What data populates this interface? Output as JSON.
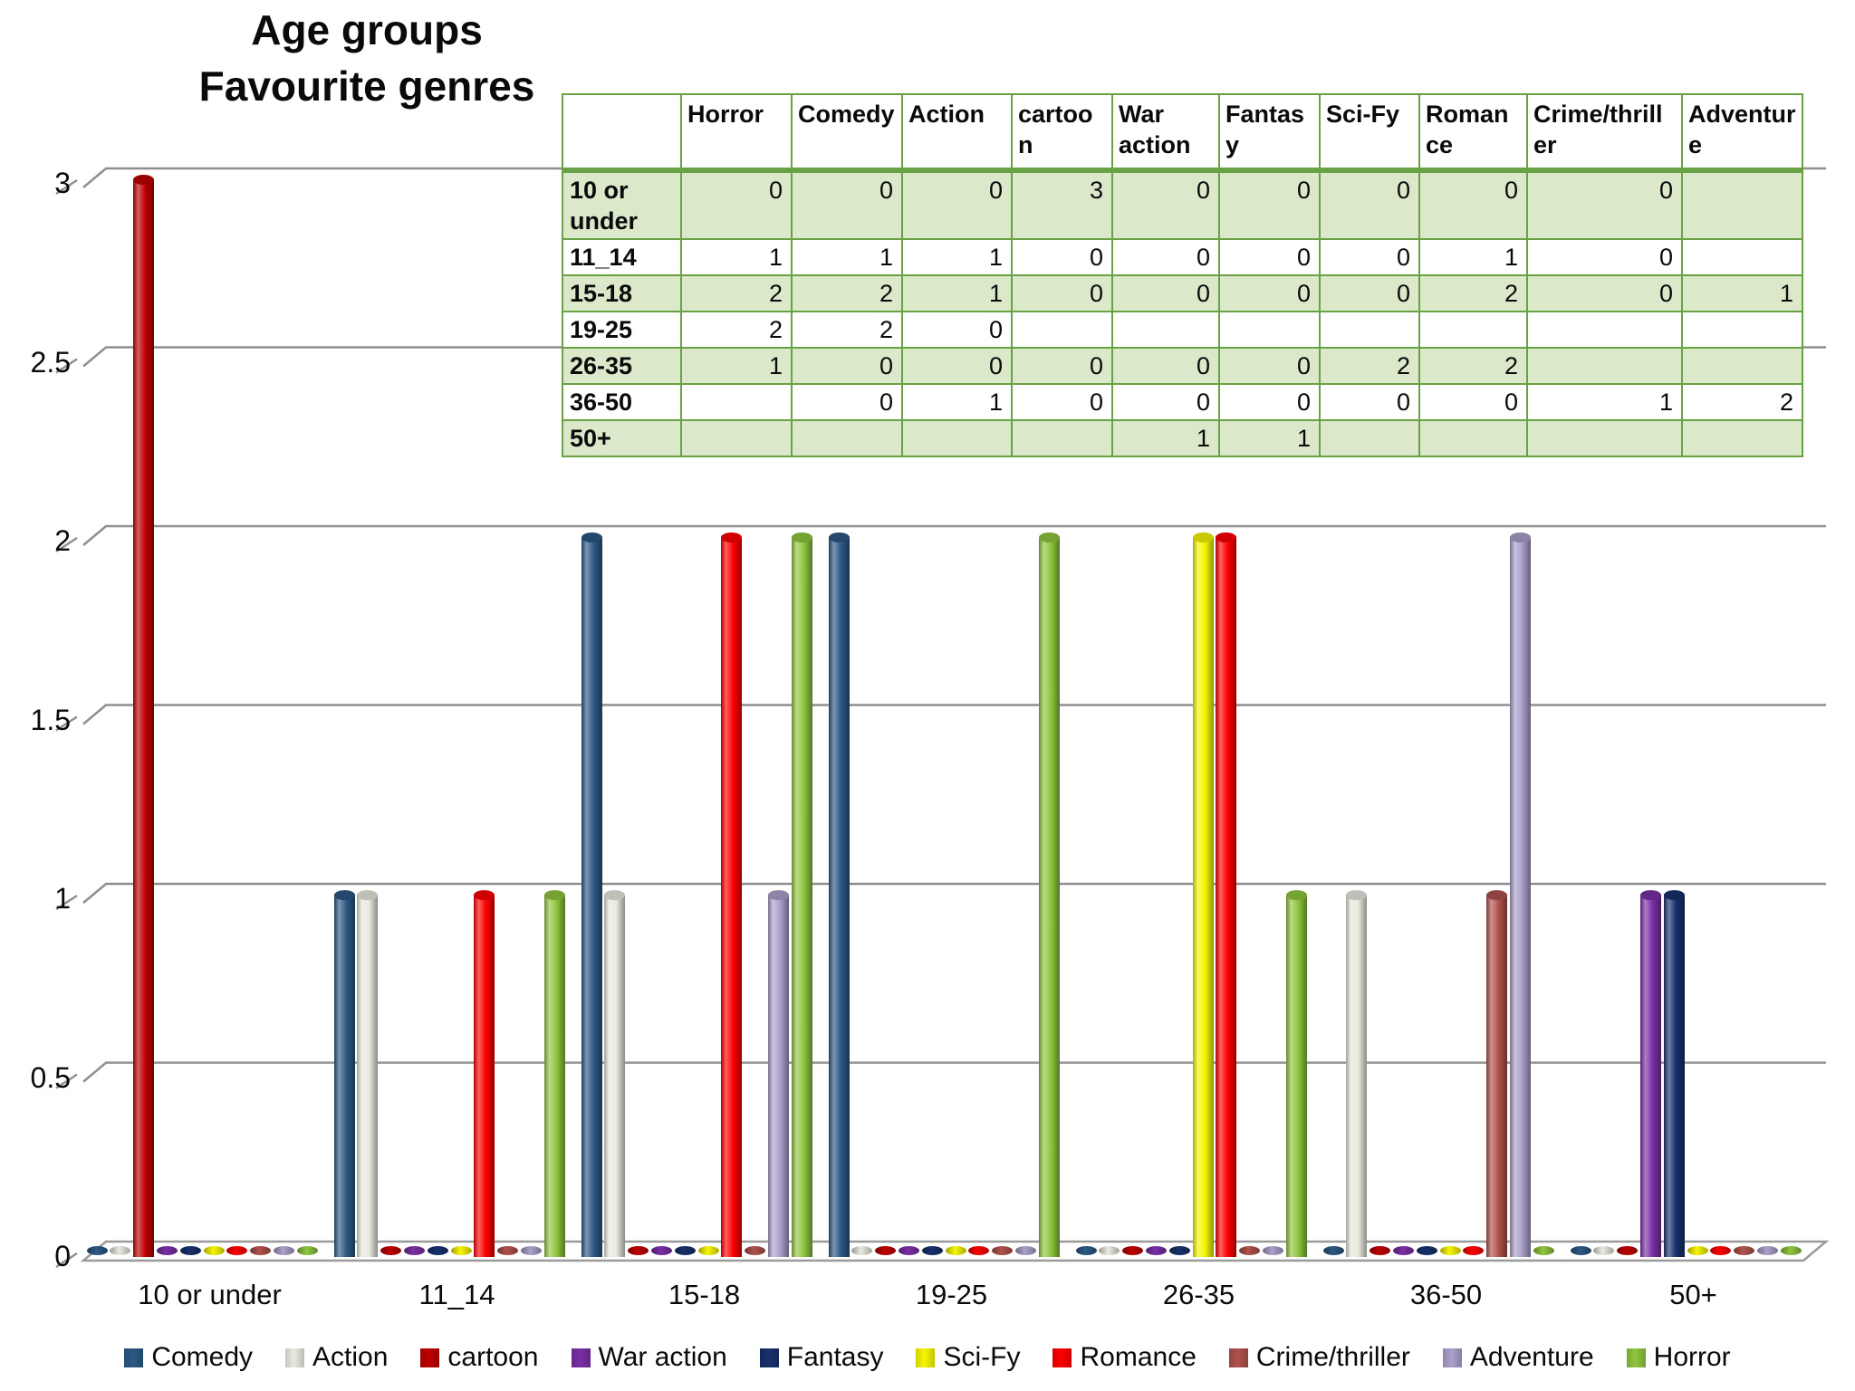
{
  "title": {
    "line1": "Age groups",
    "line2": "Favourite genres"
  },
  "chart_data": {
    "type": "bar",
    "title": "Age groups Favourite genres",
    "categories": [
      "10 or under",
      "11_14",
      "15-18",
      "19-25",
      "26-35",
      "36-50",
      "50+"
    ],
    "series": [
      {
        "name": "Comedy",
        "color": "#2c5985",
        "values": [
          0,
          1,
          2,
          2,
          0,
          0,
          0
        ]
      },
      {
        "name": "Action",
        "color": "#eaeae0",
        "values": [
          0,
          1,
          1,
          0,
          0,
          1,
          0
        ]
      },
      {
        "name": "cartoon",
        "color": "#be0000",
        "values": [
          3,
          0,
          0,
          null,
          0,
          0,
          null
        ]
      },
      {
        "name": "War action",
        "color": "#7b2fa5",
        "values": [
          0,
          0,
          0,
          null,
          0,
          0,
          1
        ]
      },
      {
        "name": "Fantasy",
        "color": "#17316d",
        "values": [
          0,
          0,
          0,
          null,
          0,
          0,
          1
        ]
      },
      {
        "name": "Sci-Fy",
        "color": "#f6f600",
        "values": [
          0,
          0,
          0,
          null,
          2,
          0,
          null
        ]
      },
      {
        "name": "Romance",
        "color": "#fe0000",
        "values": [
          0,
          1,
          2,
          null,
          2,
          0,
          null
        ]
      },
      {
        "name": "Crime/thriller",
        "color": "#b0524c",
        "values": [
          0,
          0,
          0,
          null,
          null,
          1,
          null
        ]
      },
      {
        "name": "Adventure",
        "color": "#aba0cb",
        "values": [
          null,
          null,
          1,
          null,
          null,
          2,
          null
        ]
      },
      {
        "name": "Horror",
        "color": "#8fc63f",
        "values": [
          0,
          1,
          2,
          2,
          1,
          null,
          null
        ]
      }
    ],
    "ylim": [
      0,
      3
    ],
    "yticks": [
      "0",
      "0.5",
      "1",
      "1.5",
      "2",
      "2.5",
      "3"
    ],
    "grid": true,
    "legend_position": "bottom",
    "note": "zero or blank values are drawn as flat ellipse markers on the 3D floor"
  },
  "table": {
    "columns": [
      "",
      "Horror",
      "Comedy",
      "Action",
      "cartoon",
      "War action",
      "Fantasy",
      "Sci-Fy",
      "Romance",
      "Crime/thriller",
      "Adventure"
    ],
    "rows": [
      {
        "label": "10 or under",
        "cells": [
          "0",
          "0",
          "0",
          "3",
          "0",
          "0",
          "0",
          "0",
          "0",
          ""
        ]
      },
      {
        "label": "11_14",
        "cells": [
          "1",
          "1",
          "1",
          "0",
          "0",
          "0",
          "0",
          "1",
          "0",
          ""
        ]
      },
      {
        "label": "15-18",
        "cells": [
          "2",
          "2",
          "1",
          "0",
          "0",
          "0",
          "0",
          "2",
          "0",
          "1"
        ]
      },
      {
        "label": "19-25",
        "cells": [
          "2",
          "2",
          "0",
          "",
          "",
          "",
          "",
          "",
          "",
          ""
        ]
      },
      {
        "label": "26-35",
        "cells": [
          "1",
          "0",
          "0",
          "0",
          "0",
          "0",
          "2",
          "2",
          "",
          ""
        ]
      },
      {
        "label": "36-50",
        "cells": [
          "",
          "0",
          "1",
          "0",
          "0",
          "0",
          "0",
          "0",
          "1",
          "2"
        ]
      },
      {
        "label": "50+",
        "cells": [
          "",
          "",
          "",
          "",
          "1",
          "1",
          "",
          "",
          "",
          ""
        ]
      }
    ]
  },
  "palette": {
    "table_border_green": "#69a244",
    "table_row_green": "#dbe8c9",
    "gridline_gray": "#8f8f8f",
    "floor_stroke_gray": "#9a9a9a",
    "text_black": "#0a0a0a"
  }
}
